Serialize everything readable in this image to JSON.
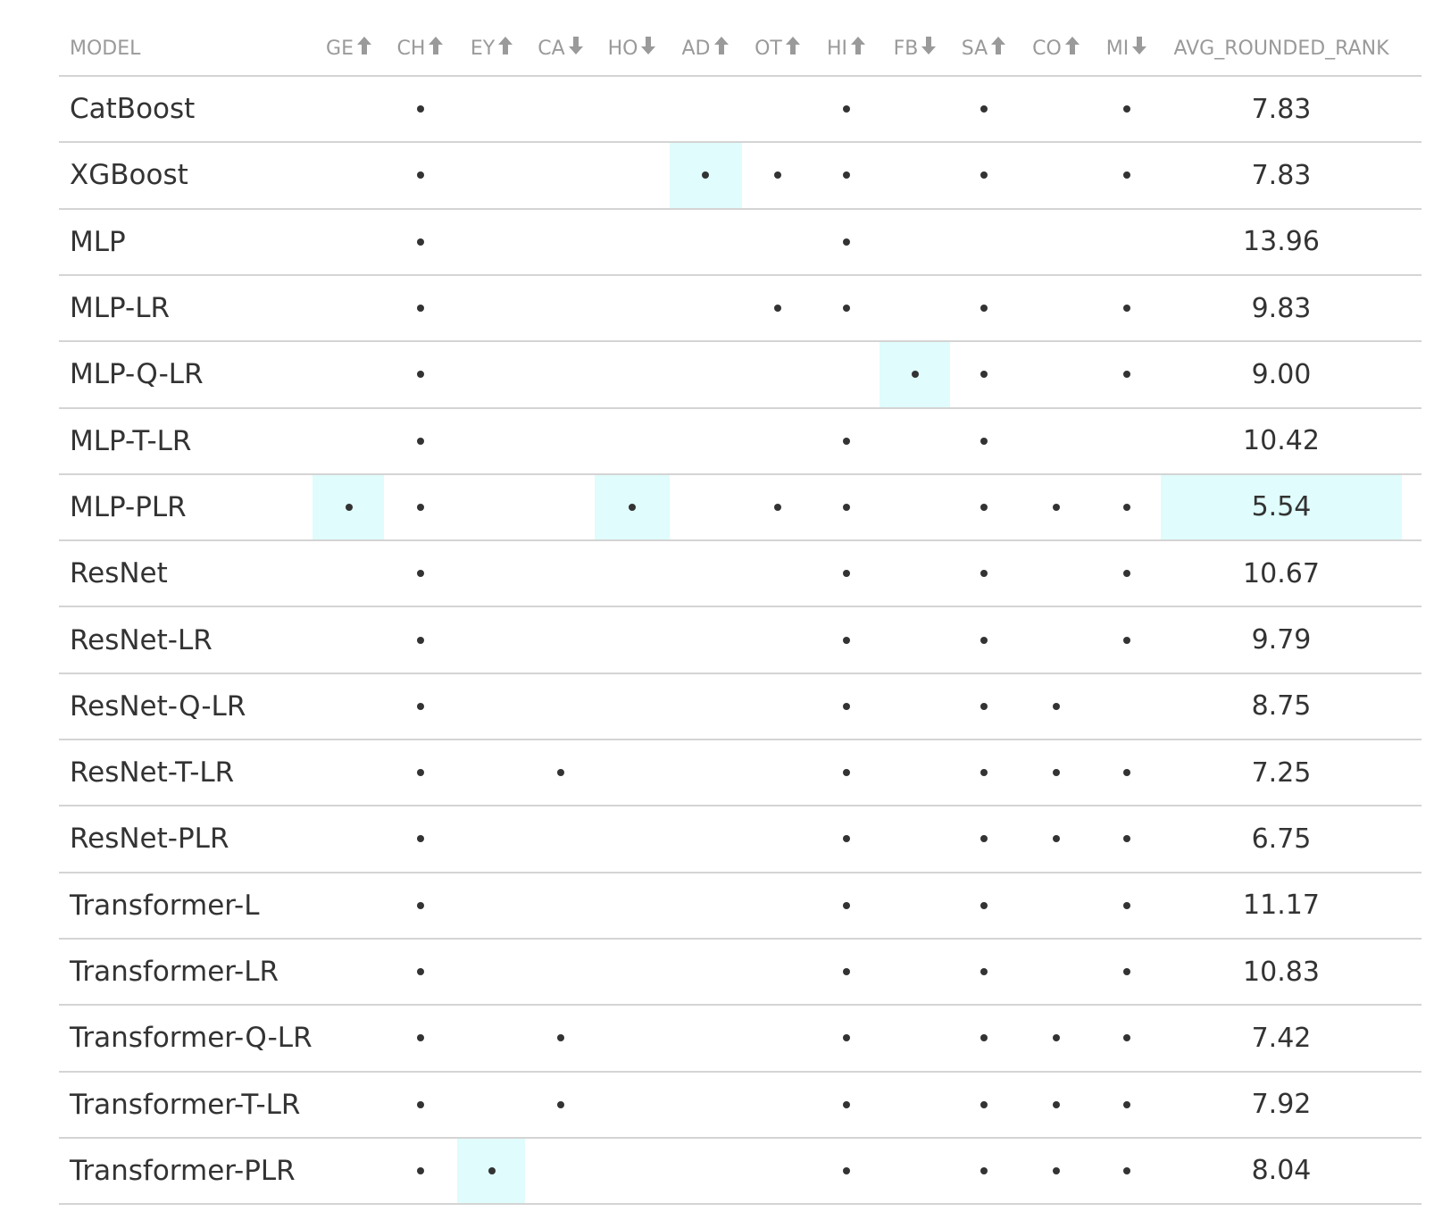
{
  "chart_data": {
    "type": "table",
    "columns": [
      {
        "key": "MODEL",
        "label": "MODEL",
        "arrow": ""
      },
      {
        "key": "GE",
        "label": "GE",
        "arrow": "up"
      },
      {
        "key": "CH",
        "label": "CH",
        "arrow": "up"
      },
      {
        "key": "EY",
        "label": "EY",
        "arrow": "up"
      },
      {
        "key": "CA",
        "label": "CA",
        "arrow": "down"
      },
      {
        "key": "HO",
        "label": "HO",
        "arrow": "down"
      },
      {
        "key": "AD",
        "label": "AD",
        "arrow": "up"
      },
      {
        "key": "OT",
        "label": "OT",
        "arrow": "up"
      },
      {
        "key": "HI",
        "label": "HI",
        "arrow": "up"
      },
      {
        "key": "FB",
        "label": "FB",
        "arrow": "down"
      },
      {
        "key": "SA",
        "label": "SA",
        "arrow": "up"
      },
      {
        "key": "CO",
        "label": "CO",
        "arrow": "up"
      },
      {
        "key": "MI",
        "label": "MI",
        "arrow": "down"
      },
      {
        "key": "AVG_ROUNDED_RANK",
        "label": "AVG_ROUNDED_RANK",
        "arrow": ""
      }
    ],
    "rows": [
      {
        "model": "CatBoost",
        "marks": [
          "CH",
          "HI",
          "SA",
          "MI"
        ],
        "avg_rounded_rank": "7.83",
        "highlight": []
      },
      {
        "model": "XGBoost",
        "marks": [
          "CH",
          "AD",
          "OT",
          "HI",
          "SA",
          "MI"
        ],
        "avg_rounded_rank": "7.83",
        "highlight": [
          "AD"
        ]
      },
      {
        "model": "MLP",
        "marks": [
          "CH",
          "HI"
        ],
        "avg_rounded_rank": "13.96",
        "highlight": []
      },
      {
        "model": "MLP-LR",
        "marks": [
          "CH",
          "OT",
          "HI",
          "SA",
          "MI"
        ],
        "avg_rounded_rank": "9.83",
        "highlight": []
      },
      {
        "model": "MLP-Q-LR",
        "marks": [
          "CH",
          "FB",
          "SA",
          "MI"
        ],
        "avg_rounded_rank": "9.00",
        "highlight": [
          "FB"
        ]
      },
      {
        "model": "MLP-T-LR",
        "marks": [
          "CH",
          "HI",
          "SA"
        ],
        "avg_rounded_rank": "10.42",
        "highlight": []
      },
      {
        "model": "MLP-PLR",
        "marks": [
          "GE",
          "CH",
          "HO",
          "OT",
          "HI",
          "SA",
          "CO",
          "MI"
        ],
        "avg_rounded_rank": "5.54",
        "highlight": [
          "GE",
          "HO",
          "AVG_ROUNDED_RANK"
        ]
      },
      {
        "model": "ResNet",
        "marks": [
          "CH",
          "HI",
          "SA",
          "MI"
        ],
        "avg_rounded_rank": "10.67",
        "highlight": []
      },
      {
        "model": "ResNet-LR",
        "marks": [
          "CH",
          "HI",
          "SA",
          "MI"
        ],
        "avg_rounded_rank": "9.79",
        "highlight": []
      },
      {
        "model": "ResNet-Q-LR",
        "marks": [
          "CH",
          "HI",
          "SA",
          "CO"
        ],
        "avg_rounded_rank": "8.75",
        "highlight": []
      },
      {
        "model": "ResNet-T-LR",
        "marks": [
          "CH",
          "CA",
          "HI",
          "SA",
          "CO",
          "MI"
        ],
        "avg_rounded_rank": "7.25",
        "highlight": []
      },
      {
        "model": "ResNet-PLR",
        "marks": [
          "CH",
          "HI",
          "SA",
          "CO",
          "MI"
        ],
        "avg_rounded_rank": "6.75",
        "highlight": []
      },
      {
        "model": "Transformer-L",
        "marks": [
          "CH",
          "HI",
          "SA",
          "MI"
        ],
        "avg_rounded_rank": "11.17",
        "highlight": []
      },
      {
        "model": "Transformer-LR",
        "marks": [
          "CH",
          "HI",
          "SA",
          "MI"
        ],
        "avg_rounded_rank": "10.83",
        "highlight": []
      },
      {
        "model": "Transformer-Q-LR",
        "marks": [
          "CH",
          "CA",
          "HI",
          "SA",
          "CO",
          "MI"
        ],
        "avg_rounded_rank": "7.42",
        "highlight": []
      },
      {
        "model": "Transformer-T-LR",
        "marks": [
          "CH",
          "CA",
          "HI",
          "SA",
          "CO",
          "MI"
        ],
        "avg_rounded_rank": "7.92",
        "highlight": []
      },
      {
        "model": "Transformer-PLR",
        "marks": [
          "CH",
          "EY",
          "HI",
          "SA",
          "CO",
          "MI"
        ],
        "avg_rounded_rank": "8.04",
        "highlight": [
          "EY"
        ]
      }
    ]
  },
  "colors": {
    "highlight": "#e0fcfc",
    "header_text": "#9a9a9a",
    "body_text": "#333333",
    "rule": "#d4d4d4"
  }
}
